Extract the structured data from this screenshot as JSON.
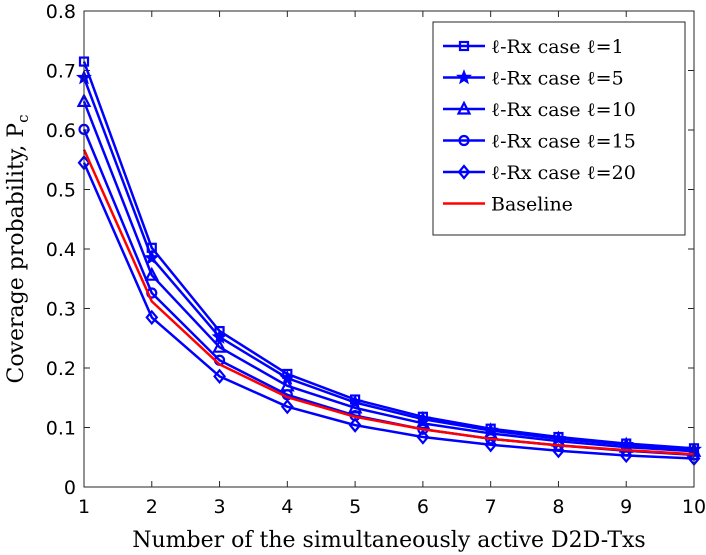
{
  "chart_data": {
    "type": "line",
    "title": "",
    "xlabel": "Number of the simultaneously active D2D-Txs",
    "ylabel": "Coverage probability, P",
    "ylabel_sub": "c",
    "xlim": [
      1,
      10
    ],
    "ylim": [
      0,
      0.8
    ],
    "xticks": [
      1,
      2,
      3,
      4,
      5,
      6,
      7,
      8,
      9,
      10
    ],
    "yticks": [
      "0",
      "0.1",
      "0.2",
      "0.3",
      "0.4",
      "0.5",
      "0.6",
      "0.7",
      "0.8"
    ],
    "x": [
      1,
      2,
      3,
      4,
      5,
      6,
      7,
      8,
      9,
      10
    ],
    "grid": false,
    "legend_position": "top-right",
    "series": [
      {
        "name": "ℓ-Rx case ℓ=1",
        "marker": "square",
        "color": "#0000ff",
        "values": [
          0.715,
          0.402,
          0.262,
          0.19,
          0.147,
          0.118,
          0.098,
          0.084,
          0.073,
          0.065
        ]
      },
      {
        "name": "ℓ-Rx case ℓ=5",
        "marker": "star",
        "color": "#0000ff",
        "values": [
          0.688,
          0.385,
          0.252,
          0.183,
          0.142,
          0.114,
          0.095,
          0.081,
          0.071,
          0.063
        ]
      },
      {
        "name": "ℓ-Rx case ℓ=10",
        "marker": "triangle",
        "color": "#0000ff",
        "values": [
          0.648,
          0.356,
          0.235,
          0.17,
          0.133,
          0.107,
          0.09,
          0.077,
          0.067,
          0.06
        ]
      },
      {
        "name": "ℓ-Rx case ℓ=15",
        "marker": "circle",
        "color": "#0000ff",
        "values": [
          0.601,
          0.326,
          0.213,
          0.155,
          0.12,
          0.097,
          0.081,
          0.07,
          0.061,
          0.054
        ]
      },
      {
        "name": "ℓ-Rx case ℓ=20",
        "marker": "diamond",
        "color": "#0000ff",
        "values": [
          0.545,
          0.285,
          0.186,
          0.135,
          0.104,
          0.084,
          0.071,
          0.061,
          0.053,
          0.048
        ]
      },
      {
        "name": "Baseline",
        "marker": "none",
        "color": "#ff0000",
        "values": [
          0.567,
          0.312,
          0.206,
          0.151,
          0.118,
          0.097,
          0.081,
          0.07,
          0.062,
          0.055
        ]
      }
    ]
  }
}
